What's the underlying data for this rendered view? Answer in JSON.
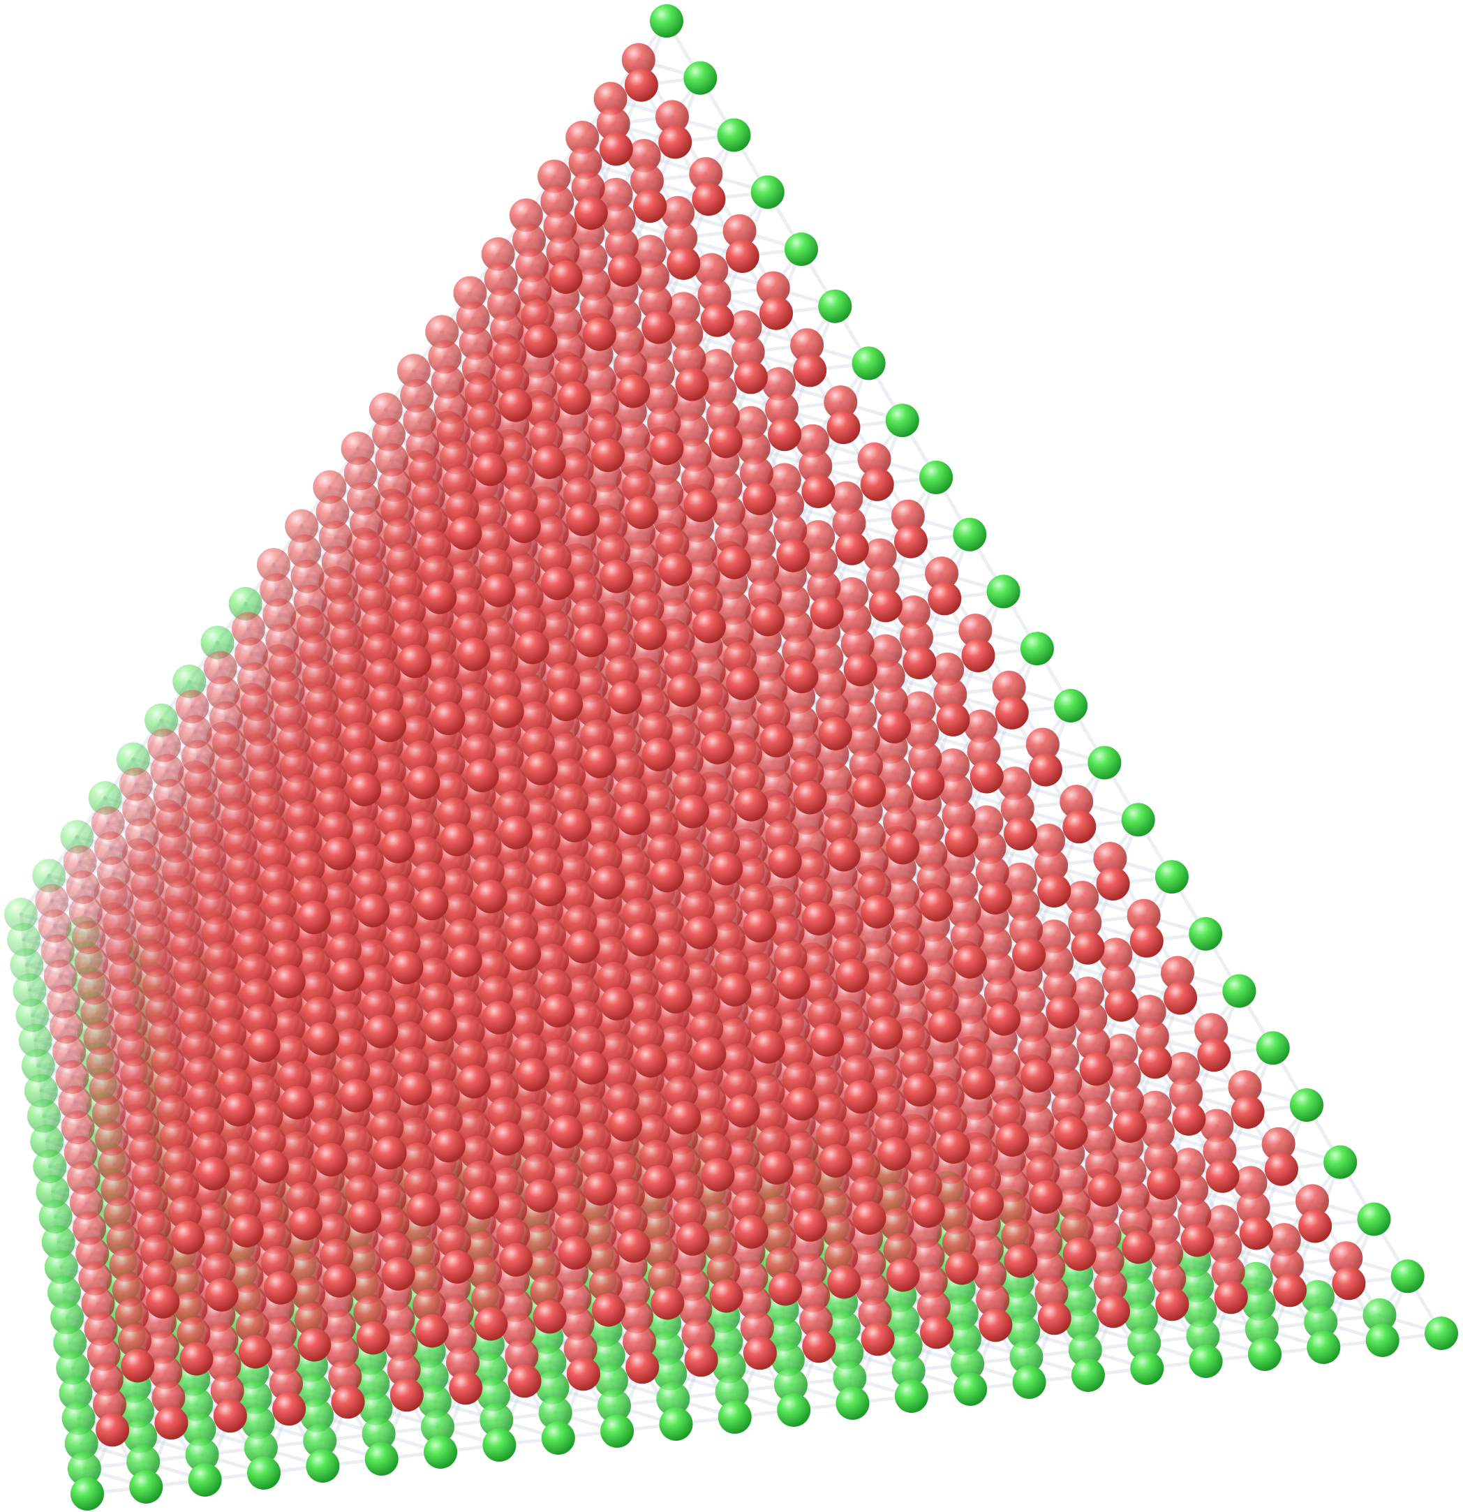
{
  "diagram": {
    "kind": "3d-lattice-graph",
    "shape": "tetrahedron",
    "layers": 24,
    "node_types": [
      {
        "name": "surface",
        "color": "#4fe04f"
      },
      {
        "name": "interior",
        "color": "#ef5d5d"
      }
    ],
    "edge_color": "#b8c6d6",
    "background": "#ffffff"
  }
}
